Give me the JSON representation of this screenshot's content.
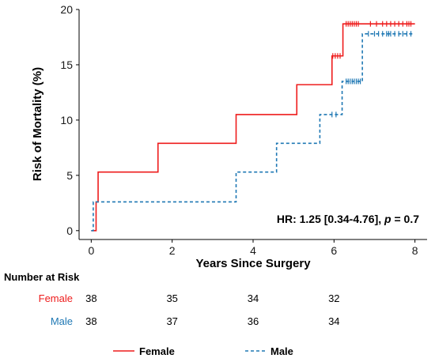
{
  "chart_data": {
    "type": "line",
    "subtype": "kaplan-meier-step",
    "xlabel": "Years Since Surgery",
    "ylabel": "Risk of Mortality (%)",
    "xlim": [
      -0.3,
      8.3
    ],
    "ylim": [
      -0.8,
      20
    ],
    "x_ticks": [
      0,
      2,
      4,
      6,
      8
    ],
    "y_ticks": [
      0,
      5,
      10,
      15,
      20
    ],
    "grid": false,
    "annotation": {
      "prefix": "HR: 1.25 [0.34-4.76], ",
      "italic": "p",
      "suffix": " = 0.7"
    },
    "series": [
      {
        "name": "Female",
        "color": "#ee1c1c",
        "line_style": "solid",
        "steps": [
          [
            0,
            0
          ],
          [
            0.12,
            2.6
          ],
          [
            0.17,
            5.3
          ],
          [
            1.65,
            7.9
          ],
          [
            3.58,
            10.5
          ],
          [
            5.08,
            13.2
          ],
          [
            5.95,
            15.8
          ],
          [
            6.22,
            18.7
          ],
          [
            8.0,
            18.7
          ]
        ],
        "censor_times": [
          5.97,
          6.03,
          6.09,
          6.15,
          6.3,
          6.35,
          6.4,
          6.45,
          6.5,
          6.55,
          6.6,
          6.9,
          7.05,
          7.2,
          7.3,
          7.4,
          7.5,
          7.6,
          7.7,
          7.8,
          7.85,
          7.9
        ]
      },
      {
        "name": "Male",
        "color": "#1f78b4",
        "line_style": "dashed",
        "steps": [
          [
            0,
            0
          ],
          [
            0.05,
            2.6
          ],
          [
            3.58,
            5.3
          ],
          [
            4.58,
            7.9
          ],
          [
            5.65,
            10.5
          ],
          [
            6.2,
            13.5
          ],
          [
            6.7,
            17.8
          ],
          [
            7.95,
            17.8
          ]
        ],
        "censor_times": [
          5.95,
          6.05,
          6.3,
          6.35,
          6.4,
          6.45,
          6.5,
          6.55,
          6.6,
          6.65,
          6.85,
          7.0,
          7.1,
          7.2,
          7.3,
          7.35,
          7.4,
          7.5,
          7.6,
          7.7,
          7.8,
          7.9
        ]
      }
    ]
  },
  "risk_table": {
    "title": "Number at Risk",
    "rows": [
      {
        "group": "Female",
        "color": "#ee1c1c",
        "values": [
          "38",
          "35",
          "34",
          "32"
        ]
      },
      {
        "group": "Male",
        "color": "#1f78b4",
        "values": [
          "38",
          "37",
          "36",
          "34"
        ]
      }
    ]
  },
  "legend": {
    "placement": "bottom",
    "items": [
      {
        "label": "Female",
        "color": "#ee1c1c",
        "line_style": "solid"
      },
      {
        "label": "Male",
        "color": "#1f78b4",
        "line_style": "dashed"
      }
    ]
  }
}
